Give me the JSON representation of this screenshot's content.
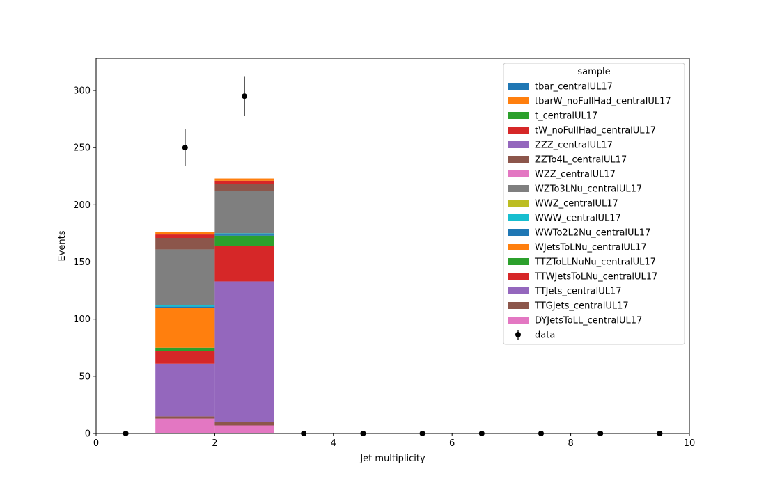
{
  "chart_data": {
    "type": "bar",
    "stacked": true,
    "xlabel": "Jet multiplicity",
    "ylabel": "Events",
    "xlim": [
      0,
      10
    ],
    "ylim": [
      0,
      328
    ],
    "x_ticks": [
      0,
      2,
      4,
      6,
      8,
      10
    ],
    "y_ticks": [
      0,
      50,
      100,
      150,
      200,
      250,
      300
    ],
    "grid": false,
    "legend_title": "sample",
    "legend_position": "top-right",
    "bins": [
      [
        1,
        2
      ],
      [
        2,
        3
      ]
    ],
    "series": [
      {
        "name": "DYJetsToLL_centralUL17",
        "color": "#e377c2",
        "values": [
          13,
          7
        ]
      },
      {
        "name": "TTGJets_centralUL17",
        "color": "#8c564b",
        "values": [
          2,
          3
        ]
      },
      {
        "name": "TTJets_centralUL17",
        "color": "#9467bd",
        "values": [
          46,
          123
        ]
      },
      {
        "name": "TTWJetsToLNu_centralUL17",
        "color": "#d62728",
        "values": [
          11,
          31
        ]
      },
      {
        "name": "TTZToLLNuNu_centralUL17",
        "color": "#2ca02c",
        "values": [
          3,
          9
        ]
      },
      {
        "name": "WJetsToLNu_centralUL17",
        "color": "#ff7f0e",
        "values": [
          35,
          0
        ]
      },
      {
        "name": "WWTo2L2Nu_centralUL17",
        "color": "#1f77b4",
        "values": [
          1,
          1
        ]
      },
      {
        "name": "WWW_centralUL17",
        "color": "#17becf",
        "values": [
          1,
          1
        ]
      },
      {
        "name": "WWZ_centralUL17",
        "color": "#bcbd22",
        "values": [
          0,
          0
        ]
      },
      {
        "name": "WZTo3LNu_centralUL17",
        "color": "#7f7f7f",
        "values": [
          49,
          37
        ]
      },
      {
        "name": "WZZ_centralUL17",
        "color": "#e377c2",
        "values": [
          0,
          0
        ]
      },
      {
        "name": "ZZTo4L_centralUL17",
        "color": "#8c564b",
        "values": [
          10,
          6
        ]
      },
      {
        "name": "ZZZ_centralUL17",
        "color": "#9467bd",
        "values": [
          0,
          0
        ]
      },
      {
        "name": "tW_noFullHad_centralUL17",
        "color": "#d62728",
        "values": [
          3,
          3
        ]
      },
      {
        "name": "t_centralUL17",
        "color": "#2ca02c",
        "values": [
          0,
          0
        ]
      },
      {
        "name": "tbarW_noFullHad_centralUL17",
        "color": "#ff7f0e",
        "values": [
          2,
          2
        ]
      },
      {
        "name": "tbar_centralUL17",
        "color": "#1f77b4",
        "values": [
          0,
          0
        ]
      }
    ],
    "legend_order": [
      "tbar_centralUL17",
      "tbarW_noFullHad_centralUL17",
      "t_centralUL17",
      "tW_noFullHad_centralUL17",
      "ZZZ_centralUL17",
      "ZZTo4L_centralUL17",
      "WZZ_centralUL17",
      "WZTo3LNu_centralUL17",
      "WWZ_centralUL17",
      "WWW_centralUL17",
      "WWTo2L2Nu_centralUL17",
      "WJetsToLNu_centralUL17",
      "TTZToLLNuNu_centralUL17",
      "TTWJetsToLNu_centralUL17",
      "TTJets_centralUL17",
      "TTGJets_centralUL17",
      "DYJetsToLL_centralUL17"
    ],
    "data": {
      "name": "data",
      "color": "#000000",
      "x": [
        0.5,
        1.5,
        2.5,
        3.5,
        4.5,
        5.5,
        6.5,
        7.5,
        8.5,
        9.5
      ],
      "y": [
        0,
        250,
        295,
        0,
        0,
        0,
        0,
        0,
        0,
        0
      ],
      "yerr": [
        0,
        16,
        17.5,
        0,
        0,
        0,
        0,
        0,
        0,
        0
      ]
    }
  }
}
